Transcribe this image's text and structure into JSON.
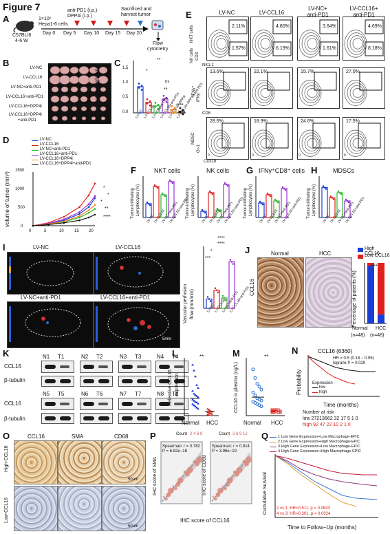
{
  "figure_title": "Figure 7",
  "panels": {
    "A": {
      "label": "A",
      "mouse": "C57BL/6",
      "age": "4-6 W",
      "cells": "1×10⁶",
      "cell_line": "Hepa1-6 cells",
      "drugs": "anti-PD1 (i.p.)",
      "drugs2": "DPP4i (i.p.)",
      "days": [
        "Day 0",
        "Day 5",
        "Day 10",
        "Day 15",
        "Day 20"
      ],
      "endpoint": "Sacrificed and",
      "endpoint2": "harvest tumor",
      "flow": "Flow",
      "flow2": "cytometry"
    },
    "B": {
      "label": "B",
      "rows": [
        "LV-NC",
        "LV-CCL16",
        "LV-NC+anti-PD1",
        "LV-CCL16+anti-PD1",
        "LV-CCL16+DPP4i",
        "LV-CCL16+DPP4i",
        "+anti-PD1"
      ]
    },
    "C": {
      "label": "C",
      "ylabel": "tumor weight (g)",
      "yticks": [
        "0.0",
        "0.5",
        "1.0",
        "1.5"
      ],
      "sig": [
        "**",
        "*",
        "ns",
        "**",
        "*",
        "****"
      ],
      "groups": [
        "LV-NC",
        "LV-CCL16",
        "LV-NC+anti-PD1",
        "LV-CCL16+anti-PD1",
        "LV-CCL16+DPP4i",
        "LV-CCL16+DPP4i+anti-PD1"
      ]
    },
    "D": {
      "label": "D",
      "ylabel": "volume of tumor (mm³)",
      "xticks": [
        "0",
        "5",
        "10",
        "15",
        "20"
      ],
      "yticks": [
        "0",
        "500",
        "1000",
        "1500"
      ],
      "sig": [
        "*",
        "*",
        "*",
        "**",
        "****"
      ]
    },
    "E": {
      "label": "E",
      "columns": [
        "LV-NC",
        "LV-CCL16",
        "LV-NC+",
        "LV-CCL16+"
      ],
      "columns2": [
        "",
        "",
        "anti-PD1",
        "anti-PD1"
      ],
      "row_labels": [
        "NKT cells",
        "NK cells",
        "IFNγ⁺",
        "MDSC"
      ],
      "axis_labels": [
        "NK1.1",
        "CD3",
        "IFNγ",
        "CD8",
        "Gr-1",
        "CD11b"
      ],
      "nkt": [
        "2.11%",
        "4.80%",
        "3.64%",
        "4.69%"
      ],
      "nk": [
        "1.57%",
        "6.19%",
        "1.61%",
        "8.18%"
      ],
      "ifng": [
        "13.6%",
        "22.1%",
        "15.7%",
        "27.0%"
      ],
      "mdsc": [
        "28.6%",
        "18.9%",
        "24.6%",
        "17.5%"
      ],
      "ticks": [
        "0",
        "2.0K",
        "4.0K",
        "6.0K"
      ]
    },
    "F": {
      "label": "F",
      "titles": [
        "NKT cells",
        "NK cells"
      ],
      "ylabel": "Tumor-infiltrating",
      "ylabel2": "Lymphocytes (%)"
    },
    "G": {
      "label": "G",
      "title": "IFNγ⁺CD8⁺ cells"
    },
    "H": {
      "label": "H",
      "title": "MDSCs"
    },
    "I": {
      "label": "I",
      "images": [
        "LV-NC",
        "LV-CCL16",
        "LV-NC+anti-PD1",
        "LV-CCL16+anti-PD1"
      ],
      "scale": "5mm",
      "ylabel": "Vascular perfusion",
      "ylabel2": "flow (mm/min)",
      "sig": [
        "****",
        "****",
        "***",
        "*"
      ]
    },
    "J": {
      "label": "J",
      "normal": "Normal",
      "hcc": "HCC",
      "stain": "CCL16",
      "legend_high": "High CCL16",
      "legend_low": "Low CCL16",
      "ylabel": "Percentage of patients (%)",
      "xlabels": [
        "Normal",
        "HCC"
      ],
      "nlabels": [
        "(n=48)",
        "(n=48)"
      ],
      "sig": "****"
    },
    "K": {
      "label": "K",
      "lanes_top": [
        "N1",
        "T1",
        "N2",
        "T2",
        "N3",
        "T3",
        "N4",
        "T4"
      ],
      "lanes_bottom": [
        "N5",
        "T5",
        "N6",
        "T6",
        "N7",
        "T7",
        "N8",
        "T8"
      ],
      "proteins": [
        "CCL16",
        "β-tubulin",
        "CCL16",
        "β-tubulin"
      ]
    },
    "L": {
      "label": "L",
      "ylabel": "Releative CCL16",
      "ylabel2": "expression",
      "xlabels": [
        "Normal",
        "HCC"
      ],
      "sig": "**"
    },
    "M": {
      "label": "M",
      "ylabel": "CCL16 in plasma (ng/L)",
      "xlabels": [
        "Normal",
        "HCC"
      ],
      "sig": "**"
    },
    "N": {
      "label": "N",
      "title": "CCL16 (6360)",
      "hr": "HR = 0.5 (0.18 − 0.95)",
      "logrank": "logrank P = 0.029",
      "ylabel": "Probability",
      "xlabel": "Time (months)",
      "legend_title": "Expression",
      "legend": [
        "low",
        "high"
      ],
      "risk_title": "Number at risk",
      "risk_low": "low  27213662  32  17  5  1  0",
      "risk_high": "high 92  47  22  10  2  1  0"
    },
    "O": {
      "label": "O",
      "stains": [
        "CCL16",
        "SMA",
        "CD68"
      ],
      "rows": [
        "High-CCL16",
        "Low-CCL16"
      ],
      "scale": "50um"
    },
    "P": {
      "label": "P",
      "count_title": "Count",
      "count1": "2 4 6 8",
      "count2": "3 6 9 12",
      "stat1": "Spearman: r = 0.782",
      "p1": "P = 6.82e−18",
      "stat2": "Spearman: r = 0.814",
      "p2": "P = 3.96e−19",
      "ylabel1": "IHC score of SMA",
      "ylabel2": "IHC score of CD68",
      "xlabel": "IHC score of CCL16"
    },
    "Q": {
      "label": "Q",
      "legend": [
        "1 Low Gene Expression+Low Macrophage-EPIC",
        "2 Low Gene Expression+High Macrophage-EPIC",
        "3 High Gene Expression+Low Macrophage-EPIC",
        "4 High Gene Expression+High Macrophage-EPIC"
      ],
      "stat1": "2 vs 1: HR=0.511, p = 0.0633",
      "stat2": "4 vs 3: HR=0.301, p = 0.0024",
      "ylabel": "Cumulative Survival",
      "xlabel": "Time to Follow−Up (months)"
    }
  },
  "colors": {
    "nc": "#1a3dd6",
    "ccl16": "#e0201a",
    "nc_pd1": "#2bb830",
    "ccl16_pd1": "#9a34d6",
    "dpp4": "#f08a1e",
    "combo": "#111111"
  },
  "chart_data": [
    {
      "type": "line",
      "title": "",
      "xlabel": "",
      "ylabel": "volume of tumor (mm³)",
      "x": [
        0,
        5,
        10,
        15,
        18,
        20
      ],
      "ylim": [
        0,
        1500
      ],
      "series": [
        {
          "name": "LV-NC",
          "values": [
            0,
            50,
            150,
            330,
            520,
            770
          ]
        },
        {
          "name": "LV-CCL16",
          "values": [
            0,
            80,
            250,
            520,
            850,
            1180
          ]
        },
        {
          "name": "LV-NC+anti-PD1",
          "values": [
            0,
            40,
            110,
            230,
            360,
            470
          ]
        },
        {
          "name": "LV-CCL16+anti-PD1",
          "values": [
            0,
            60,
            180,
            380,
            600,
            830
          ]
        },
        {
          "name": "LV-CCL16+DPP4i",
          "values": [
            0,
            45,
            120,
            270,
            430,
            580
          ]
        },
        {
          "name": "LV-CCL16+DPP4i+anti-PD1",
          "values": [
            0,
            30,
            80,
            150,
            230,
            310
          ]
        }
      ]
    },
    {
      "type": "bar",
      "title": "",
      "ylabel": "tumor weight (g)",
      "categories": [
        "LV-NC",
        "LV-CCL16",
        "LV-NC+anti-PD1",
        "LV-CCL16+anti-PD1",
        "LV-CCL16+DPP4i",
        "LV-CCL16+DPP4i+anti-PD1"
      ],
      "values": [
        0.75,
        0.3,
        0.2,
        0.4,
        0.1,
        0.05
      ],
      "ylim": [
        0,
        1.5
      ]
    },
    {
      "type": "bar",
      "title": "NKT cells",
      "categories": [
        "LV-NC",
        "LV-CCL16",
        "LV-NC+anti-PD1",
        "LV-CCL16+anti-PD1"
      ],
      "values": [
        2.0,
        4.5,
        3.3,
        5.2
      ],
      "ylim": [
        0,
        6
      ]
    },
    {
      "type": "bar",
      "title": "NK cells",
      "categories": [
        "LV-NC",
        "LV-CCL16",
        "LV-NC+anti-PD1",
        "LV-CCL16+anti-PD1"
      ],
      "values": [
        1.5,
        6.0,
        1.8,
        8.0
      ],
      "ylim": [
        0,
        10
      ]
    },
    {
      "type": "bar",
      "title": "IFNγ⁺CD8⁺ cells",
      "categories": [
        "LV-NC",
        "LV-CCL16",
        "LV-NC+anti-PD1",
        "LV-CCL16+anti-PD1"
      ],
      "values": [
        14,
        22,
        16,
        28
      ],
      "ylim": [
        0,
        40
      ]
    },
    {
      "type": "bar",
      "title": "MDSCs",
      "categories": [
        "LV-NC",
        "LV-CCL16",
        "LV-NC+anti-PD1",
        "LV-CCL16+anti-PD1"
      ],
      "values": [
        29,
        19,
        24,
        16
      ],
      "ylim": [
        0,
        40
      ]
    },
    {
      "type": "bar",
      "title": "",
      "ylabel": "Vascular perfusion flow (mm/min)",
      "categories": [
        "LV-NC",
        "LV-CCL16",
        "LV-NC+anti-PD1",
        "LV-CCL16+anti-PD1"
      ],
      "values": [
        18,
        35,
        20,
        90
      ],
      "ylim": [
        0,
        120
      ]
    },
    {
      "type": "bar",
      "title": "",
      "ylabel": "Percentage of patients (%)",
      "categories": [
        "Normal",
        "HCC"
      ],
      "series": [
        {
          "name": "High CCL16",
          "values": [
            95,
            15
          ]
        },
        {
          "name": "Low CCL16",
          "values": [
            5,
            85
          ]
        }
      ],
      "ylim": [
        0,
        100
      ]
    }
  ]
}
